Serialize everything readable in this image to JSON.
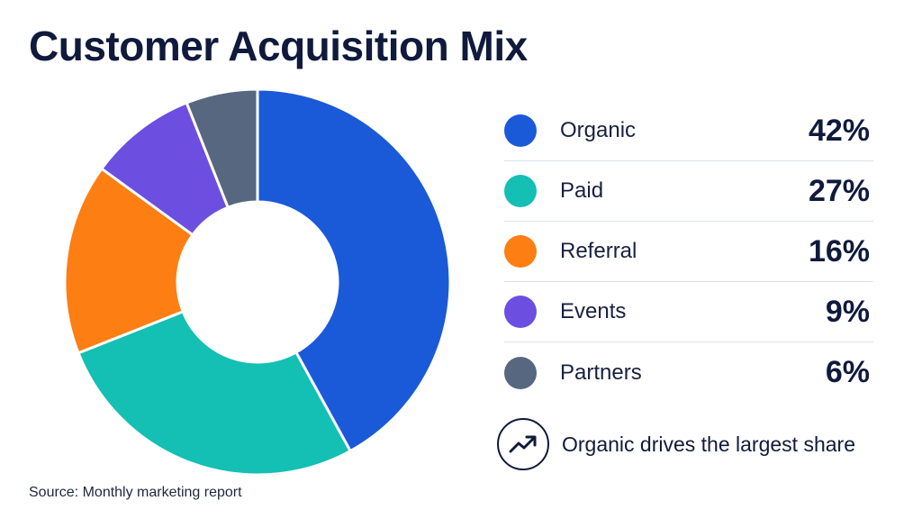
{
  "title": "Customer Acquisition Mix",
  "source": "Source: Monthly marketing report",
  "note": {
    "text": "Organic drives the largest share",
    "icon": "trend-up-icon"
  },
  "legend": [
    {
      "label": "Organic",
      "value": "42%",
      "color": "#1a5ad9"
    },
    {
      "label": "Paid",
      "value": "27%",
      "color": "#14bfb3"
    },
    {
      "label": "Referral",
      "value": "16%",
      "color": "#fd7e12"
    },
    {
      "label": "Events",
      "value": "9%",
      "color": "#6c4fe0"
    },
    {
      "label": "Partners",
      "value": "6%",
      "color": "#56677f"
    }
  ],
  "chart_data": {
    "type": "pie",
    "variant": "donut",
    "title": "Customer Acquisition Mix",
    "categories": [
      "Organic",
      "Paid",
      "Referral",
      "Events",
      "Partners"
    ],
    "values": [
      42,
      27,
      16,
      9,
      6
    ],
    "unit": "%",
    "colors": [
      "#1a5ad9",
      "#14bfb3",
      "#fd7e12",
      "#6c4fe0",
      "#56677f"
    ],
    "legend_position": "right"
  }
}
